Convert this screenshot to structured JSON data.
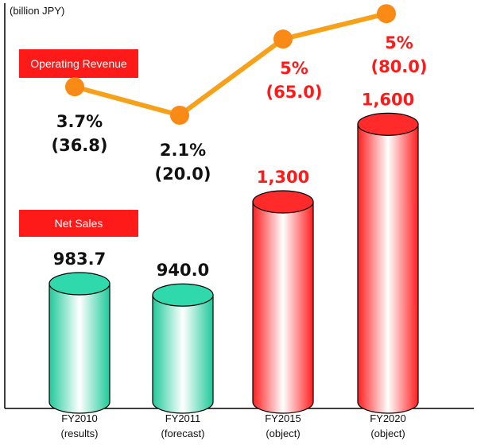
{
  "unit_label": "(billion JPY)",
  "legend": {
    "line_label": "Operating Revenue",
    "bar_label": "Net Sales"
  },
  "colors": {
    "results_bar": "#2fd9ac",
    "object_bar": "#ff2a2a",
    "line": "#f7a019",
    "marker": "#f98a16",
    "badge": "#ff1a1a",
    "results_text": "#111111",
    "object_text": "#ff1a1a"
  },
  "chart_data": {
    "type": "bar",
    "categories": [
      [
        "FY2010",
        "(results)"
      ],
      [
        "FY2011",
        "(forecast)"
      ],
      [
        "FY2015",
        "(object)"
      ],
      [
        "FY2020",
        "(object)"
      ]
    ],
    "series": [
      {
        "name": "Net Sales",
        "type": "bar",
        "values": [
          983.7,
          940.0,
          1300,
          1600
        ],
        "labels": [
          "983.7",
          "940.0",
          "1,300",
          "1,600"
        ]
      },
      {
        "name": "Operating Revenue",
        "type": "line",
        "values": [
          36.8,
          20.0,
          65.0,
          80.0
        ],
        "margins": [
          "3.7%",
          "2.1%",
          "5%",
          "5%"
        ],
        "labels": [
          "(36.8)",
          "(20.0)",
          "(65.0)",
          "(80.0)"
        ]
      }
    ],
    "ylabel": "(billion JPY)",
    "grid": false
  }
}
